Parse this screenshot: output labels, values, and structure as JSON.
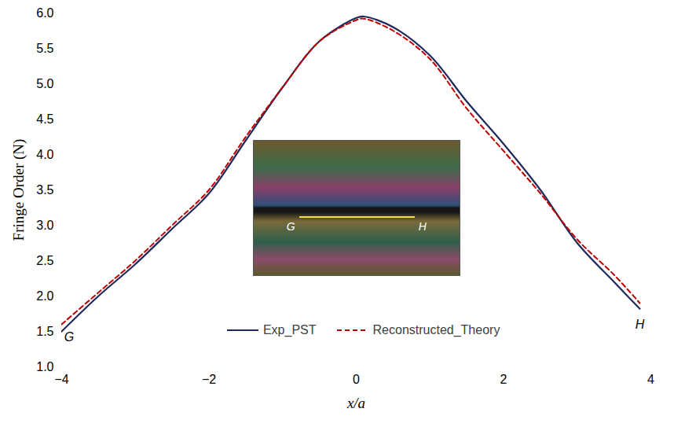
{
  "chart_data": {
    "type": "line",
    "xlabel": "x/a",
    "ylabel": "Fringe Order (N)",
    "x": [
      -4,
      -3.5,
      -3,
      -2.5,
      -2,
      -1.5,
      -1,
      -0.5,
      0,
      0.1,
      0.5,
      1,
      1.5,
      2,
      2.5,
      3,
      3.5,
      3.85
    ],
    "series": [
      {
        "name": "Exp_PST",
        "color": "#1f2a5c",
        "line_style": "solid",
        "values": [
          1.5,
          2.0,
          2.45,
          2.95,
          3.45,
          4.2,
          4.95,
          5.6,
          5.93,
          5.95,
          5.8,
          5.4,
          4.75,
          4.15,
          3.5,
          2.75,
          2.2,
          1.82
        ]
      },
      {
        "name": "Reconstructed_Theory",
        "color": "#c00000",
        "line_style": "dashed",
        "values": [
          1.6,
          2.05,
          2.5,
          3.0,
          3.5,
          4.25,
          4.95,
          5.6,
          5.9,
          5.92,
          5.75,
          5.35,
          4.65,
          4.05,
          3.45,
          2.8,
          2.3,
          1.9
        ]
      }
    ],
    "xlim": [
      -4,
      4
    ],
    "xticks": [
      -4,
      -2,
      0,
      2,
      4
    ],
    "ylim": [
      1,
      6
    ],
    "yticks": [
      1,
      1.5,
      2,
      2.5,
      3,
      3.5,
      4,
      4.5,
      5,
      5.5,
      6
    ],
    "grid": false,
    "legend": "bottom",
    "annotations": [
      {
        "text": "G",
        "x": -3.9,
        "y": 1.42
      },
      {
        "text": "H",
        "x": 3.85,
        "y": 1.6
      }
    ],
    "inset_labels": [
      "G",
      "H"
    ]
  }
}
